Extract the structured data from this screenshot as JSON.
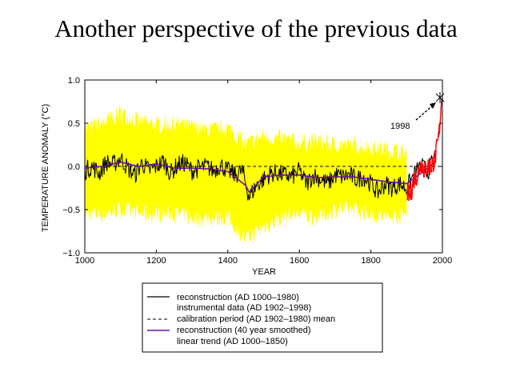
{
  "slide": {
    "title": "Another perspective of the previous data"
  },
  "colors": {
    "uncertainty_band": "#ffff00",
    "reconstruction": "#000000",
    "instrumental": "#ff0000",
    "smoothed": "#6a0dad",
    "calibration_mean": "#000000"
  },
  "chart_data": {
    "type": "line",
    "xlabel": "YEAR",
    "ylabel": "TEMPERATURE ANOMALY (°C)",
    "xlim": [
      1000,
      2000
    ],
    "ylim": [
      -1.0,
      1.0
    ],
    "xticks": [
      "1000",
      "1200",
      "1400",
      "1600",
      "1800",
      "2000"
    ],
    "yticks": [
      "1.0",
      "0.5",
      "0.0",
      "−0.5",
      "−1.0"
    ],
    "grid": false,
    "legend_position": "below plot",
    "series": [
      {
        "name": "reconstruction (AD 1000–1980)",
        "style": "solid black",
        "x": [
          1000,
          1020,
          1040,
          1060,
          1080,
          1100,
          1120,
          1140,
          1160,
          1180,
          1200,
          1220,
          1240,
          1260,
          1280,
          1300,
          1320,
          1340,
          1360,
          1380,
          1400,
          1420,
          1440,
          1460,
          1480,
          1500,
          1520,
          1540,
          1560,
          1580,
          1600,
          1620,
          1640,
          1660,
          1680,
          1700,
          1720,
          1740,
          1760,
          1780,
          1800,
          1820,
          1840,
          1860,
          1880,
          1900,
          1920,
          1940,
          1960,
          1980
        ],
        "values": [
          -0.05,
          0.0,
          -0.08,
          0.05,
          0.02,
          0.1,
          -0.02,
          -0.1,
          0.04,
          -0.05,
          0.0,
          0.06,
          -0.08,
          0.02,
          0.04,
          -0.05,
          -0.02,
          0.0,
          -0.05,
          0.02,
          -0.05,
          -0.1,
          -0.05,
          -0.35,
          -0.22,
          -0.15,
          -0.08,
          -0.08,
          -0.1,
          -0.12,
          -0.05,
          -0.2,
          -0.1,
          -0.15,
          -0.2,
          -0.1,
          -0.12,
          -0.1,
          -0.15,
          -0.12,
          -0.2,
          -0.3,
          -0.2,
          -0.25,
          -0.2,
          -0.25,
          -0.1,
          0.0,
          -0.05,
          0.12
        ]
      },
      {
        "name": "instrumental data (AD 1902–1998)",
        "style": "solid red",
        "x": [
          1902,
          1910,
          1920,
          1930,
          1940,
          1950,
          1960,
          1970,
          1980,
          1990,
          1998
        ],
        "values": [
          -0.3,
          -0.35,
          -0.15,
          -0.1,
          0.05,
          -0.05,
          0.0,
          0.0,
          0.1,
          0.35,
          0.78
        ]
      },
      {
        "name": "calibration period (AD 1902–1980) mean",
        "style": "dashed black",
        "x": [
          1000,
          2000
        ],
        "values": [
          0.0,
          0.0
        ]
      },
      {
        "name": "reconstruction (40 year smoothed)",
        "style": "solid purple",
        "x": [
          1000,
          1050,
          1100,
          1150,
          1200,
          1250,
          1300,
          1350,
          1400,
          1450,
          1460,
          1500,
          1550,
          1600,
          1650,
          1700,
          1750,
          1800,
          1850,
          1900,
          1950,
          1980
        ],
        "values": [
          -0.02,
          0.0,
          0.05,
          0.0,
          0.03,
          -0.02,
          -0.02,
          -0.03,
          -0.06,
          -0.22,
          -0.3,
          -0.12,
          -0.1,
          -0.1,
          -0.13,
          -0.12,
          -0.12,
          -0.15,
          -0.18,
          -0.2,
          -0.05,
          0.05
        ]
      },
      {
        "name": "linear trend (AD 1000–1850)",
        "style": "none",
        "x": [
          1000,
          1850
        ],
        "values": [
          0.0,
          -0.18
        ]
      }
    ],
    "uncertainty_band": {
      "x": [
        1000,
        1050,
        1100,
        1150,
        1200,
        1250,
        1300,
        1350,
        1400,
        1450,
        1500,
        1550,
        1600,
        1650,
        1700,
        1750,
        1800,
        1850,
        1900
      ],
      "upper": [
        0.45,
        0.5,
        0.62,
        0.52,
        0.48,
        0.5,
        0.45,
        0.42,
        0.45,
        0.25,
        0.35,
        0.32,
        0.28,
        0.3,
        0.25,
        0.25,
        0.22,
        0.2,
        0.15
      ],
      "lower": [
        -0.55,
        -0.55,
        -0.5,
        -0.55,
        -0.55,
        -0.55,
        -0.6,
        -0.6,
        -0.6,
        -0.85,
        -0.7,
        -0.6,
        -0.55,
        -0.6,
        -0.5,
        -0.5,
        -0.55,
        -0.6,
        -0.55
      ]
    },
    "annotations": [
      {
        "text": "1998",
        "x": 1998,
        "y": 0.78
      }
    ]
  }
}
